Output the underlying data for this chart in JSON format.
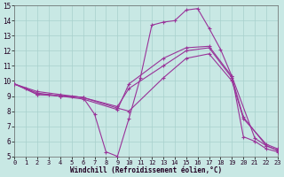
{
  "bg_color": "#c8e8e4",
  "grid_color": "#a8d0cc",
  "line_color": "#993399",
  "xlim": [
    0,
    23
  ],
  "ylim": [
    5,
    15
  ],
  "xticks": [
    0,
    1,
    2,
    3,
    4,
    5,
    6,
    7,
    8,
    9,
    10,
    11,
    12,
    13,
    14,
    15,
    16,
    17,
    18,
    19,
    20,
    21,
    22,
    23
  ],
  "yticks": [
    5,
    6,
    7,
    8,
    9,
    10,
    11,
    12,
    13,
    14,
    15
  ],
  "xlabel": "Windchill (Refroidissement éolien,°C)",
  "lines": [
    {
      "x": [
        0,
        1,
        2,
        3,
        4,
        5,
        6,
        7,
        8,
        9,
        10,
        11,
        12,
        13,
        14,
        15,
        16,
        17,
        18,
        19,
        20,
        21,
        22,
        23
      ],
      "y": [
        9.8,
        9.5,
        9.1,
        9.1,
        9.0,
        9.0,
        8.9,
        7.8,
        5.3,
        5.0,
        7.5,
        10.2,
        13.7,
        13.9,
        14.0,
        14.7,
        14.8,
        13.5,
        12.1,
        10.3,
        6.3,
        6.0,
        5.5,
        5.3
      ]
    },
    {
      "x": [
        0,
        2,
        4,
        6,
        9,
        10,
        13,
        15,
        17,
        19,
        21,
        22,
        23
      ],
      "y": [
        9.8,
        9.1,
        9.0,
        8.8,
        8.1,
        9.8,
        11.5,
        12.2,
        12.3,
        10.3,
        6.2,
        5.7,
        5.4
      ]
    },
    {
      "x": [
        0,
        2,
        4,
        6,
        9,
        10,
        13,
        15,
        17,
        19,
        20,
        22,
        23
      ],
      "y": [
        9.8,
        9.2,
        9.0,
        8.9,
        8.2,
        8.0,
        10.2,
        11.5,
        11.8,
        10.0,
        7.5,
        5.8,
        5.5
      ]
    },
    {
      "x": [
        0,
        2,
        4,
        6,
        9,
        10,
        13,
        15,
        17,
        19,
        20,
        22,
        23
      ],
      "y": [
        9.8,
        9.3,
        9.1,
        8.9,
        8.3,
        9.5,
        11.0,
        12.0,
        12.2,
        10.2,
        7.6,
        5.7,
        5.4
      ]
    }
  ]
}
